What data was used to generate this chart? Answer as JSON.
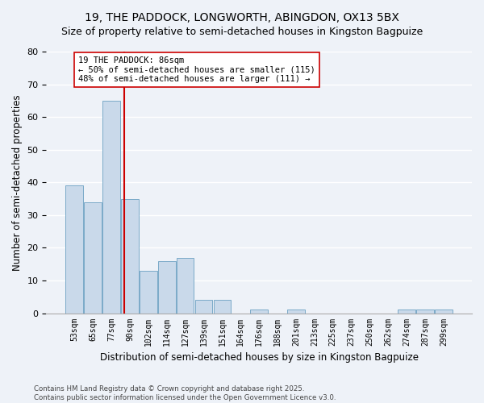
{
  "title": "19, THE PADDOCK, LONGWORTH, ABINGDON, OX13 5BX",
  "subtitle": "Size of property relative to semi-detached houses in Kingston Bagpuize",
  "xlabel": "Distribution of semi-detached houses by size in Kingston Bagpuize",
  "ylabel": "Number of semi-detached properties",
  "categories": [
    "53sqm",
    "65sqm",
    "77sqm",
    "90sqm",
    "102sqm",
    "114sqm",
    "127sqm",
    "139sqm",
    "151sqm",
    "164sqm",
    "176sqm",
    "188sqm",
    "201sqm",
    "213sqm",
    "225sqm",
    "237sqm",
    "250sqm",
    "262sqm",
    "274sqm",
    "287sqm",
    "299sqm"
  ],
  "values": [
    39,
    34,
    65,
    35,
    13,
    16,
    17,
    4,
    4,
    0,
    1,
    0,
    1,
    0,
    0,
    0,
    0,
    0,
    1,
    1,
    1
  ],
  "bar_color": "#c9d9ea",
  "bar_edge_color": "#7aaac8",
  "vline_x": 2.69,
  "vline_color": "#cc0000",
  "annotation_title": "19 THE PADDOCK: 86sqm",
  "annotation_line1": "← 50% of semi-detached houses are smaller (115)",
  "annotation_line2": "48% of semi-detached houses are larger (111) →",
  "annotation_box_color": "#ffffff",
  "annotation_box_edge": "#cc0000",
  "ylim": [
    0,
    80
  ],
  "yticks": [
    0,
    10,
    20,
    30,
    40,
    50,
    60,
    70,
    80
  ],
  "footer1": "Contains HM Land Registry data © Crown copyright and database right 2025.",
  "footer2": "Contains public sector information licensed under the Open Government Licence v3.0.",
  "bg_color": "#eef2f8",
  "grid_color": "#ffffff",
  "title_fontsize": 10,
  "axis_fontsize": 8.5
}
